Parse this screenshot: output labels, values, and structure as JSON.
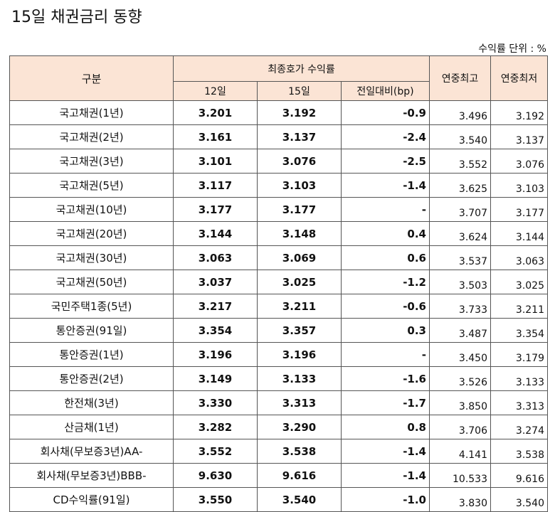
{
  "title": "15일 채권금리 동향",
  "unit_note": "수익률 단위 : %",
  "headers": {
    "category": "구분",
    "closing_yield": "최종호가 수익률",
    "day12": "12일",
    "day15": "15일",
    "change": "전일대비(bp)",
    "year_high": "연중최고",
    "year_low": "연중최저"
  },
  "rows": [
    {
      "name": "국고채권(1년)",
      "d12": "3.201",
      "d15": "3.192",
      "chg": "-0.9",
      "high": "3.496",
      "low": "3.192"
    },
    {
      "name": "국고채권(2년)",
      "d12": "3.161",
      "d15": "3.137",
      "chg": "-2.4",
      "high": "3.540",
      "low": "3.137"
    },
    {
      "name": "국고채권(3년)",
      "d12": "3.101",
      "d15": "3.076",
      "chg": "-2.5",
      "high": "3.552",
      "low": "3.076"
    },
    {
      "name": "국고채권(5년)",
      "d12": "3.117",
      "d15": "3.103",
      "chg": "-1.4",
      "high": "3.625",
      "low": "3.103"
    },
    {
      "name": "국고채권(10년)",
      "d12": "3.177",
      "d15": "3.177",
      "chg": "-",
      "high": "3.707",
      "low": "3.177"
    },
    {
      "name": "국고채권(20년)",
      "d12": "3.144",
      "d15": "3.148",
      "chg": "0.4",
      "high": "3.624",
      "low": "3.144"
    },
    {
      "name": "국고채권(30년)",
      "d12": "3.063",
      "d15": "3.069",
      "chg": "0.6",
      "high": "3.537",
      "low": "3.063"
    },
    {
      "name": "국고채권(50년)",
      "d12": "3.037",
      "d15": "3.025",
      "chg": "-1.2",
      "high": "3.503",
      "low": "3.025"
    },
    {
      "name": "국민주택1종(5년)",
      "d12": "3.217",
      "d15": "3.211",
      "chg": "-0.6",
      "high": "3.733",
      "low": "3.211"
    },
    {
      "name": "통안증권(91일)",
      "d12": "3.354",
      "d15": "3.357",
      "chg": "0.3",
      "high": "3.487",
      "low": "3.354"
    },
    {
      "name": "통안증권(1년)",
      "d12": "3.196",
      "d15": "3.196",
      "chg": "-",
      "high": "3.450",
      "low": "3.179"
    },
    {
      "name": "통안증권(2년)",
      "d12": "3.149",
      "d15": "3.133",
      "chg": "-1.6",
      "high": "3.526",
      "low": "3.133"
    },
    {
      "name": "한전채(3년)",
      "d12": "3.330",
      "d15": "3.313",
      "chg": "-1.7",
      "high": "3.850",
      "low": "3.313"
    },
    {
      "name": "산금채(1년)",
      "d12": "3.282",
      "d15": "3.290",
      "chg": "0.8",
      "high": "3.706",
      "low": "3.274"
    },
    {
      "name": "회사채(무보증3년)AA-",
      "d12": "3.552",
      "d15": "3.538",
      "chg": "-1.4",
      "high": "4.141",
      "low": "3.538"
    },
    {
      "name": "회사채(무보증3년)BBB-",
      "d12": "9.630",
      "d15": "9.616",
      "chg": "-1.4",
      "high": "10.533",
      "low": "9.616"
    },
    {
      "name": "CD수익률(91일)",
      "d12": "3.550",
      "d15": "3.540",
      "chg": "-1.0",
      "high": "3.830",
      "low": "3.540"
    }
  ]
}
